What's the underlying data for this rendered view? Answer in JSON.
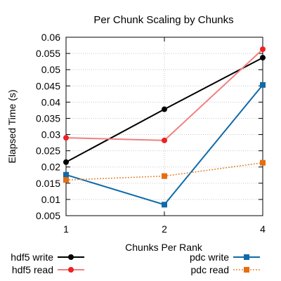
{
  "chart_data": {
    "type": "line",
    "title": "Per Chunk Scaling by Chunks",
    "xlabel": "Chunks Per Rank",
    "ylabel": "Elapsed Time (s)",
    "x": [
      "1",
      "2",
      "4"
    ],
    "ylim": [
      0.005,
      0.06
    ],
    "yticks": [
      "0.005",
      "0.01",
      "0.015",
      "0.02",
      "0.025",
      "0.03",
      "0.035",
      "0.04",
      "0.045",
      "0.05",
      "0.055",
      "0.06"
    ],
    "grid": true,
    "legend_position": "bottom",
    "series": [
      {
        "name": "hdf5 write",
        "values": [
          0.0215,
          0.0378,
          0.0537
        ],
        "color": "#000000",
        "marker": "circle",
        "dash": "solid"
      },
      {
        "name": "hdf5 read",
        "values": [
          0.029,
          0.0282,
          0.0563
        ],
        "color": "#ee2020",
        "line_color": "#f08080",
        "marker": "circle",
        "dash": "solid"
      },
      {
        "name": "pdc write",
        "values": [
          0.0176,
          0.0084,
          0.0453
        ],
        "color": "#0f6ba8",
        "marker": "square",
        "dash": "solid"
      },
      {
        "name": "pdc read",
        "values": [
          0.016,
          0.0172,
          0.0213
        ],
        "color": "#e66e10",
        "line_color": "#e58a3c",
        "marker": "square",
        "dash": "dotted"
      }
    ]
  }
}
